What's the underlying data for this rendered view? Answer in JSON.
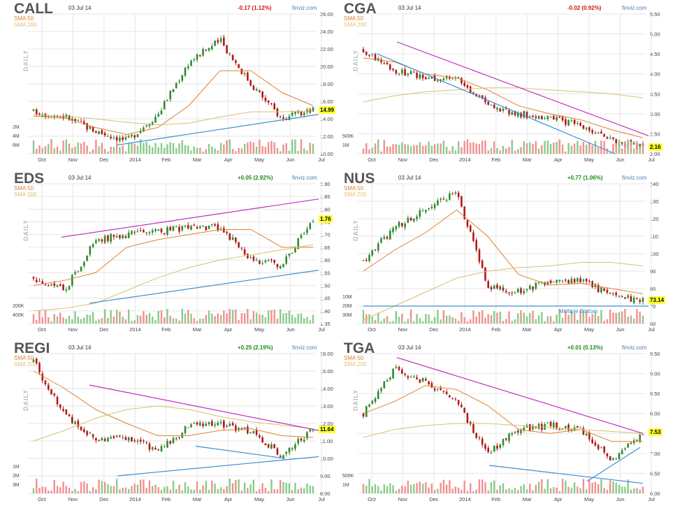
{
  "panels": [
    {
      "ticker": "CALL",
      "date": "03 Jul 14",
      "change": "-0.17 (1.12%)",
      "change_sign": "neg",
      "brand": "finviz.com",
      "sma50": "SMA 50",
      "sma200": "SMA 200",
      "side_label": "DAILY",
      "last_price": "14.99",
      "y_ticks": [
        "26.00",
        "24.00",
        "22.00",
        "20.00",
        "18.00",
        "16.00",
        "14.00",
        "12.00",
        "10.00"
      ],
      "vol_ticks": [
        "6M",
        "4M",
        "2M"
      ],
      "months": [
        "Oct",
        "Nov",
        "Dec",
        "2014",
        "Feb",
        "Mar",
        "Apr",
        "May",
        "Jun",
        "Jul"
      ]
    },
    {
      "ticker": "CGA",
      "date": "03 Jul 14",
      "change": "-0.02 (0.92%)",
      "change_sign": "neg",
      "brand": "finviz.com",
      "sma50": "SMA 50",
      "sma200": "SMA 200",
      "side_label": "DAILY",
      "last_price": "2.16",
      "y_ticks": [
        "5.50",
        "5.00",
        "4.50",
        "4.00",
        "3.50",
        "3.00",
        "2.50",
        "2.00"
      ],
      "vol_ticks": [
        "1M",
        "500K"
      ],
      "months": [
        "Oct",
        "Nov",
        "Dec",
        "2014",
        "Feb",
        "Mar",
        "Apr",
        "May",
        "Jun",
        "Jul"
      ]
    },
    {
      "ticker": "EDS",
      "date": "03 Jul 14",
      "change": "+0.05 (2.92%)",
      "change_sign": "pos",
      "brand": "finviz.com",
      "sma50": "SMA 50",
      "sma200": "SMA 200",
      "side_label": "DAILY",
      "last_price": "1.76",
      "y_ticks": [
        "1.90",
        "1.85",
        "1.80",
        "1.75",
        "1.70",
        "1.65",
        "1.60",
        "1.55",
        "1.50",
        "1.45",
        "1.40",
        "1.35"
      ],
      "vol_ticks": [
        "400K",
        "200K"
      ],
      "months": [
        "Oct",
        "Nov",
        "Dec",
        "2014",
        "Feb",
        "Mar",
        "Apr",
        "May",
        "Jun",
        "Jul"
      ]
    },
    {
      "ticker": "NUS",
      "date": "03 Jul 14",
      "change": "+0.77 (1.06%)",
      "change_sign": "pos",
      "brand": "finviz.com",
      "sma50": "SMA 50",
      "sma200": "SMA 200",
      "side_label": "DAILY",
      "last_price": "73.14",
      "annotation": "Multiple Bottom",
      "y_ticks": [
        "140",
        "130",
        "120",
        "110",
        "100",
        "90",
        "80",
        "70",
        "60"
      ],
      "vol_ticks": [
        "30M",
        "20M",
        "10M"
      ],
      "months": [
        "Oct",
        "Nov",
        "Dec",
        "2014",
        "Feb",
        "Mar",
        "Apr",
        "May",
        "Jun",
        "Jul"
      ]
    },
    {
      "ticker": "REGI",
      "date": "03 Jul 14",
      "change": "+0.25 (2.19%)",
      "change_sign": "pos",
      "brand": "finviz.com",
      "sma50": "SMA 50",
      "sma200": "SMA 200",
      "side_label": "DAILY",
      "last_price": "11.64",
      "y_ticks": [
        "16.00",
        "15.00",
        "14.00",
        "13.00",
        "12.00",
        "11.00",
        "10.00",
        "9.00",
        "8.00"
      ],
      "vol_ticks": [
        "3M",
        "2M",
        "1M"
      ],
      "months": [
        "Oct",
        "Nov",
        "Dec",
        "2014",
        "Feb",
        "Mar",
        "Apr",
        "May",
        "Jun",
        "Jul"
      ]
    },
    {
      "ticker": "TGA",
      "date": "03 Jul 14",
      "change": "+0.01 (0.13%)",
      "change_sign": "pos",
      "brand": "finviz.com",
      "sma50": "SMA 50",
      "sma200": "SMA 200",
      "side_label": "DAILY",
      "last_price": "7.53",
      "y_ticks": [
        "9.50",
        "9.00",
        "8.50",
        "8.00",
        "7.50",
        "7.00",
        "6.50",
        "6.00"
      ],
      "vol_ticks": [
        "1M",
        "500K"
      ],
      "months": [
        "Oct",
        "Nov",
        "Dec",
        "2014",
        "Feb",
        "Mar",
        "Apr",
        "May",
        "Jun",
        "Jul"
      ]
    }
  ],
  "chart_data": [
    {
      "type": "line",
      "title": "CALL",
      "ylim": [
        10,
        26
      ],
      "x": [
        "Oct",
        "Nov",
        "Dec",
        "2014",
        "Feb",
        "Mar",
        "Apr",
        "May",
        "Jun",
        "Jul"
      ],
      "series": [
        {
          "values": [
            14.8,
            14.3,
            12.6,
            11.5,
            14.5,
            20.5,
            23.0,
            18.0,
            14.0,
            14.99
          ]
        },
        {
          "name": "SMA 50",
          "values": [
            14.3,
            14.1,
            13.0,
            12.2,
            13.0,
            15.5,
            19.5,
            19.5,
            17.0,
            15.5
          ]
        },
        {
          "name": "SMA 200",
          "values": [
            14.5,
            14.3,
            14.0,
            13.6,
            13.3,
            13.5,
            14.2,
            14.8,
            14.8,
            14.9
          ]
        }
      ]
    },
    {
      "type": "line",
      "title": "CGA",
      "ylim": [
        2.0,
        5.5
      ],
      "x": [
        "Oct",
        "Nov",
        "Dec",
        "2014",
        "Feb",
        "Mar",
        "Apr",
        "May",
        "Jun",
        "Jul"
      ],
      "series": [
        {
          "values": [
            4.6,
            4.1,
            3.9,
            3.9,
            3.2,
            3.0,
            2.9,
            2.7,
            2.3,
            2.16
          ]
        },
        {
          "name": "SMA 50",
          "values": [
            4.4,
            4.3,
            4.0,
            3.9,
            3.6,
            3.2,
            3.0,
            2.85,
            2.6,
            2.4
          ]
        },
        {
          "name": "SMA 200",
          "values": [
            3.3,
            3.45,
            3.55,
            3.6,
            3.65,
            3.65,
            3.6,
            3.55,
            3.5,
            3.4
          ]
        }
      ]
    },
    {
      "type": "line",
      "title": "EDS",
      "ylim": [
        1.35,
        1.9
      ],
      "x": [
        "Oct",
        "Nov",
        "Dec",
        "2014",
        "Feb",
        "Mar",
        "Apr",
        "May",
        "Jun",
        "Jul"
      ],
      "series": [
        {
          "values": [
            1.53,
            1.48,
            1.68,
            1.7,
            1.71,
            1.73,
            1.73,
            1.6,
            1.58,
            1.76
          ]
        },
        {
          "name": "SMA 50",
          "values": [
            1.5,
            1.52,
            1.55,
            1.65,
            1.68,
            1.7,
            1.72,
            1.72,
            1.65,
            1.65
          ]
        },
        {
          "name": "SMA 200",
          "values": [
            1.4,
            1.41,
            1.43,
            1.48,
            1.53,
            1.57,
            1.6,
            1.62,
            1.64,
            1.66
          ]
        }
      ]
    },
    {
      "type": "line",
      "title": "NUS",
      "ylim": [
        60,
        140
      ],
      "x": [
        "Oct",
        "Nov",
        "Dec",
        "2014",
        "Feb",
        "Mar",
        "Apr",
        "May",
        "Jun",
        "Jul"
      ],
      "series": [
        {
          "values": [
            96,
            115,
            125,
            135,
            82,
            78,
            85,
            85,
            76,
            73.14
          ]
        },
        {
          "name": "SMA 50",
          "values": [
            90,
            102,
            112,
            125,
            110,
            88,
            82,
            83,
            80,
            77
          ]
        },
        {
          "name": "SMA 200",
          "values": [
            62,
            70,
            78,
            86,
            90,
            92,
            93,
            95,
            95,
            93
          ]
        }
      ]
    },
    {
      "type": "line",
      "title": "REGI",
      "ylim": [
        8,
        16
      ],
      "x": [
        "Oct",
        "Nov",
        "Dec",
        "2014",
        "Feb",
        "Mar",
        "Apr",
        "May",
        "Jun",
        "Jul"
      ],
      "series": [
        {
          "values": [
            15.5,
            12.5,
            11.0,
            11.2,
            10.5,
            11.8,
            12.0,
            11.5,
            10.2,
            11.64
          ]
        },
        {
          "name": "SMA 50",
          "values": [
            15.0,
            14.0,
            12.8,
            12.0,
            11.3,
            11.3,
            11.6,
            11.7,
            11.3,
            11.2
          ]
        },
        {
          "name": "SMA 200",
          "values": [
            11.0,
            11.6,
            12.3,
            12.8,
            13.0,
            12.8,
            12.4,
            12.1,
            11.9,
            11.7
          ]
        }
      ]
    },
    {
      "type": "line",
      "title": "TGA",
      "ylim": [
        6.0,
        9.5
      ],
      "x": [
        "Oct",
        "Nov",
        "Dec",
        "2014",
        "Feb",
        "Mar",
        "Apr",
        "May",
        "Jun",
        "Jul"
      ],
      "series": [
        {
          "values": [
            8.0,
            9.1,
            8.8,
            8.3,
            7.0,
            7.6,
            7.7,
            7.6,
            6.8,
            7.53
          ]
        },
        {
          "name": "SMA 50",
          "values": [
            8.0,
            8.3,
            8.7,
            8.6,
            8.2,
            7.6,
            7.5,
            7.6,
            7.3,
            7.3
          ]
        },
        {
          "name": "SMA 200",
          "values": [
            7.4,
            7.6,
            7.7,
            7.75,
            7.75,
            7.7,
            7.65,
            7.6,
            7.55,
            7.5
          ]
        }
      ]
    }
  ],
  "colors": {
    "up": "#2e8b2e",
    "down": "#b01818",
    "sma50": "#e08030",
    "sma200": "#d8c070",
    "trend_support": "#3a8fd0",
    "trend_resist": "#c030c0",
    "vol_up": "#88cc88",
    "vol_down": "#f09090",
    "grid": "#e6e6e6"
  }
}
